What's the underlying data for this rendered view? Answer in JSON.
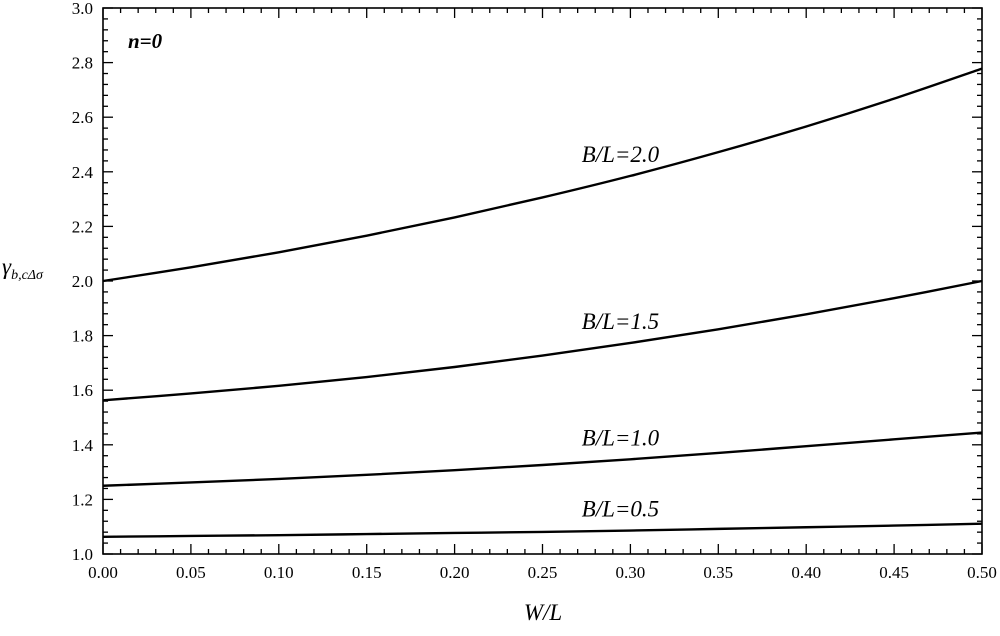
{
  "chart_data": {
    "type": "line",
    "xlabel": "W/L",
    "ylabel_main": "γ",
    "ylabel_sub": "b,cΔσ",
    "annotation": "n=0",
    "xlim": [
      0,
      0.5
    ],
    "ylim": [
      1.0,
      3.0
    ],
    "x_ticks": [
      "0.00",
      "0.05",
      "0.10",
      "0.15",
      "0.20",
      "0.25",
      "0.30",
      "0.35",
      "0.40",
      "0.45",
      "0.50"
    ],
    "y_ticks": [
      "1.0",
      "1.2",
      "1.4",
      "1.6",
      "1.8",
      "2.0",
      "2.2",
      "2.4",
      "2.6",
      "2.8",
      "3.0"
    ],
    "x": [
      0.0,
      0.05,
      0.1,
      0.15,
      0.2,
      0.25,
      0.3,
      0.35,
      0.4,
      0.45,
      0.5
    ],
    "series": [
      {
        "name": "B/L=0.5",
        "values": [
          1.063,
          1.066,
          1.069,
          1.073,
          1.077,
          1.081,
          1.086,
          1.092,
          1.098,
          1.104,
          1.111
        ]
      },
      {
        "name": "B/L=1.0",
        "values": [
          1.25,
          1.262,
          1.275,
          1.29,
          1.307,
          1.326,
          1.347,
          1.37,
          1.395,
          1.42,
          1.445
        ]
      },
      {
        "name": "B/L=1.5",
        "values": [
          1.563,
          1.588,
          1.616,
          1.648,
          1.685,
          1.727,
          1.773,
          1.823,
          1.878,
          1.937,
          2.0
        ]
      },
      {
        "name": "B/L=2.0",
        "values": [
          2.0,
          2.05,
          2.105,
          2.166,
          2.233,
          2.306,
          2.385,
          2.472,
          2.566,
          2.668,
          2.778
        ]
      }
    ]
  }
}
